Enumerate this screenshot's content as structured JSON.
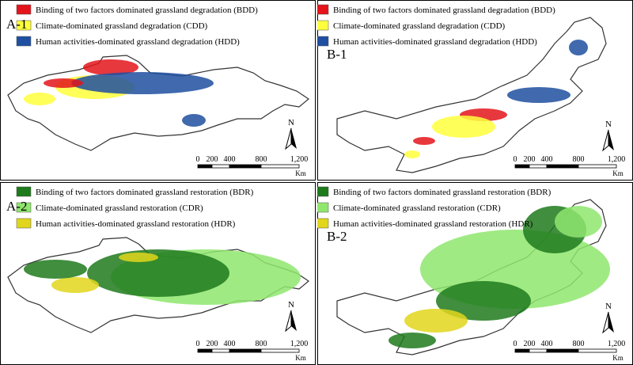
{
  "panels": [
    {
      "label": "A-1",
      "legend": [
        {
          "text": "Binding of two factors dominated grassland degradation (BDD)",
          "color": "#e3151b"
        },
        {
          "text": "Climate-dominated grassland degradation (CDD)",
          "color": "#ffff3c"
        },
        {
          "text": "Human activities-dominated grassland degradation (HDD)",
          "color": "#1f4fa0"
        }
      ],
      "north": "N",
      "scale": {
        "ticks": [
          "0",
          "200",
          "400",
          "800",
          "1,200"
        ],
        "unit": "Km"
      }
    },
    {
      "label": "B-1",
      "legend": [
        {
          "text": "Binding of two factors dominated grassland degradation (BDD)",
          "color": "#e3151b"
        },
        {
          "text": "Climate-dominated grassland degradation (CDD)",
          "color": "#ffff3c"
        },
        {
          "text": "Human activities-dominated grassland degradation (HDD)",
          "color": "#1f4fa0"
        }
      ],
      "north": "N",
      "scale": {
        "ticks": [
          "0",
          "200",
          "400",
          "800",
          "1,200"
        ],
        "unit": "Km"
      }
    },
    {
      "label": "A-2",
      "legend": [
        {
          "text": "Binding of two factors dominated grassland restoration (BDR)",
          "color": "#1f7a1c"
        },
        {
          "text": "Climate-dominated grassland restoration (CDR)",
          "color": "#8fe66f"
        },
        {
          "text": "Human activities-dominated grassland restoration (HDR)",
          "color": "#e2d61c"
        }
      ],
      "north": "N",
      "scale": {
        "ticks": [
          "0",
          "200",
          "400",
          "800",
          "1,200"
        ],
        "unit": "Km"
      }
    },
    {
      "label": "B-2",
      "legend": [
        {
          "text": "Binding of two factors dominated grassland restoration (BDR)",
          "color": "#1f7a1c"
        },
        {
          "text": "Climate-dominated grassland restoration (CDR)",
          "color": "#8fe66f"
        },
        {
          "text": "Human activities-dominated grassland restoration (HDR)",
          "color": "#e2d61c"
        }
      ],
      "north": "N",
      "scale": {
        "ticks": [
          "0",
          "200",
          "400",
          "800",
          "1,200"
        ],
        "unit": "Km"
      }
    }
  ]
}
